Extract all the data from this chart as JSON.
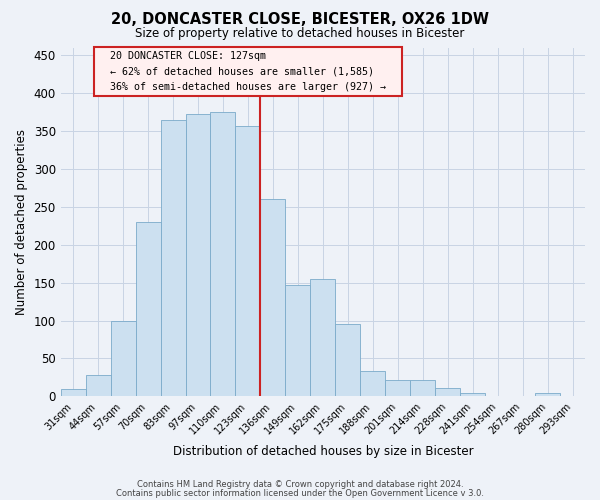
{
  "title": "20, DONCASTER CLOSE, BICESTER, OX26 1DW",
  "subtitle": "Size of property relative to detached houses in Bicester",
  "xlabel": "Distribution of detached houses by size in Bicester",
  "ylabel": "Number of detached properties",
  "bar_labels": [
    "31sqm",
    "44sqm",
    "57sqm",
    "70sqm",
    "83sqm",
    "97sqm",
    "110sqm",
    "123sqm",
    "136sqm",
    "149sqm",
    "162sqm",
    "175sqm",
    "188sqm",
    "201sqm",
    "214sqm",
    "228sqm",
    "241sqm",
    "254sqm",
    "267sqm",
    "280sqm",
    "293sqm"
  ],
  "bar_values": [
    10,
    28,
    100,
    230,
    365,
    372,
    375,
    357,
    260,
    147,
    155,
    95,
    33,
    21,
    22,
    11,
    4,
    0,
    0,
    4,
    0
  ],
  "bar_color": "#cce0f0",
  "bar_edge_color": "#7aaaca",
  "grid_color": "#c8d4e4",
  "background_color": "#eef2f8",
  "ylim": [
    0,
    460
  ],
  "yticks": [
    0,
    50,
    100,
    150,
    200,
    250,
    300,
    350,
    400,
    450
  ],
  "vline_color": "#cc2222",
  "annotation_title": "20 DONCASTER CLOSE: 127sqm",
  "annotation_line1": "← 62% of detached houses are smaller (1,585)",
  "annotation_line2": "36% of semi-detached houses are larger (927) →",
  "annotation_box_facecolor": "#fff0f0",
  "annotation_box_edgecolor": "#cc2222",
  "footer1": "Contains HM Land Registry data © Crown copyright and database right 2024.",
  "footer2": "Contains public sector information licensed under the Open Government Licence v 3.0."
}
